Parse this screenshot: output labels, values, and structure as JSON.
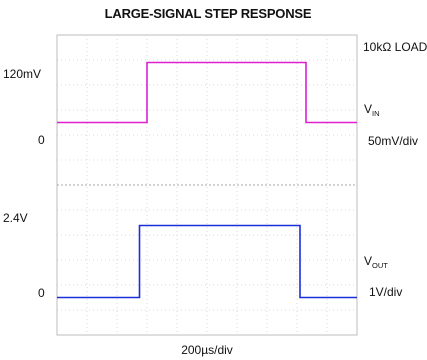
{
  "chart_data": [
    {
      "type": "line",
      "title": "LARGE-SIGNAL STEP RESPONSE",
      "load_label": "10kΩ LOAD",
      "trace_label": "V",
      "trace_sub": "IN",
      "scale_label": "50mV/div",
      "ylabel_top": "120mV",
      "ylabel_zero": "0",
      "ylim": [
        -125,
        175
      ],
      "grid": true,
      "color": "#e020d0",
      "series": [
        {
          "x": [
            0,
            3,
            3,
            8.3,
            8.3,
            10
          ],
          "y": [
            0,
            0,
            120,
            120,
            0,
            0
          ]
        }
      ]
    },
    {
      "type": "line",
      "trace_label": "V",
      "trace_sub": "OUT",
      "scale_label": "1V/div",
      "ylabel_top": "2.4V",
      "ylabel_zero": "0",
      "xlabel": "200µs/div",
      "ylim": [
        -1.25,
        3.75
      ],
      "grid": true,
      "color": "#1a2fd8",
      "series": [
        {
          "x": [
            0,
            2.75,
            2.75,
            8.1,
            8.1,
            10
          ],
          "y": [
            0,
            0,
            2.4,
            2.4,
            0,
            0
          ]
        }
      ]
    }
  ]
}
